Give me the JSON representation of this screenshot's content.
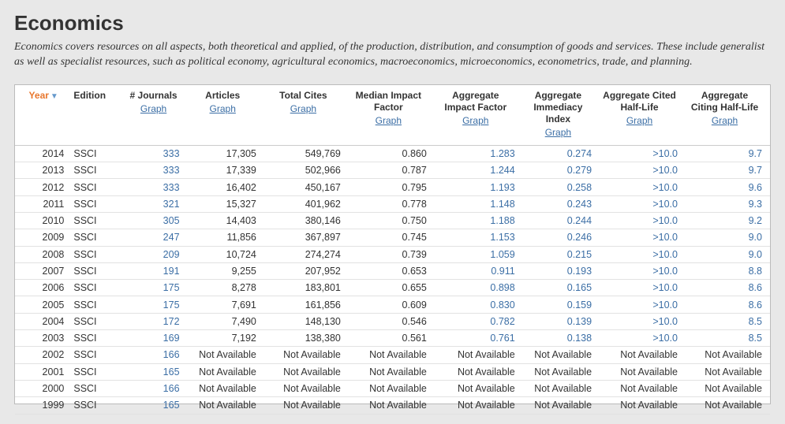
{
  "header": {
    "title": "Economics",
    "description": "Economics covers resources on all aspects, both theoretical and applied, of the production, distribution, and consumption of goods and services. These include generalist as well as specialist resources, such as political economy, agricultural economics, macroeconomics, microeconomics, econometrics, trade, and planning."
  },
  "table": {
    "graph_label": "Graph",
    "na_label": "Not Available",
    "columns": [
      {
        "key": "year",
        "label": "Year",
        "sort": true,
        "graph": false
      },
      {
        "key": "edition",
        "label": "Edition",
        "graph": false
      },
      {
        "key": "njournals",
        "label": "# Journals",
        "graph": true
      },
      {
        "key": "articles",
        "label": "Articles",
        "graph": true
      },
      {
        "key": "cites",
        "label": "Total Cites",
        "graph": true
      },
      {
        "key": "mif",
        "label": "Median Impact Factor",
        "graph": true
      },
      {
        "key": "aif",
        "label": "Aggregate Impact Factor",
        "graph": true
      },
      {
        "key": "aii",
        "label": "Aggregate Immediacy Index",
        "graph": true
      },
      {
        "key": "acited",
        "label": "Aggregate Cited Half-Life",
        "graph": true
      },
      {
        "key": "aciting",
        "label": "Aggregate Citing Half-Life",
        "graph": true
      }
    ],
    "rows": [
      {
        "year": "2014",
        "edition": "SSCI",
        "njournals": "333",
        "articles": "17,305",
        "cites": "549,769",
        "mif": "0.860",
        "aif": "1.283",
        "aii": "0.274",
        "acited": ">10.0",
        "aciting": "9.7"
      },
      {
        "year": "2013",
        "edition": "SSCI",
        "njournals": "333",
        "articles": "17,339",
        "cites": "502,966",
        "mif": "0.787",
        "aif": "1.244",
        "aii": "0.279",
        "acited": ">10.0",
        "aciting": "9.7"
      },
      {
        "year": "2012",
        "edition": "SSCI",
        "njournals": "333",
        "articles": "16,402",
        "cites": "450,167",
        "mif": "0.795",
        "aif": "1.193",
        "aii": "0.258",
        "acited": ">10.0",
        "aciting": "9.6"
      },
      {
        "year": "2011",
        "edition": "SSCI",
        "njournals": "321",
        "articles": "15,327",
        "cites": "401,962",
        "mif": "0.778",
        "aif": "1.148",
        "aii": "0.243",
        "acited": ">10.0",
        "aciting": "9.3"
      },
      {
        "year": "2010",
        "edition": "SSCI",
        "njournals": "305",
        "articles": "14,403",
        "cites": "380,146",
        "mif": "0.750",
        "aif": "1.188",
        "aii": "0.244",
        "acited": ">10.0",
        "aciting": "9.2"
      },
      {
        "year": "2009",
        "edition": "SSCI",
        "njournals": "247",
        "articles": "11,856",
        "cites": "367,897",
        "mif": "0.745",
        "aif": "1.153",
        "aii": "0.246",
        "acited": ">10.0",
        "aciting": "9.0"
      },
      {
        "year": "2008",
        "edition": "SSCI",
        "njournals": "209",
        "articles": "10,724",
        "cites": "274,274",
        "mif": "0.739",
        "aif": "1.059",
        "aii": "0.215",
        "acited": ">10.0",
        "aciting": "9.0"
      },
      {
        "year": "2007",
        "edition": "SSCI",
        "njournals": "191",
        "articles": "9,255",
        "cites": "207,952",
        "mif": "0.653",
        "aif": "0.911",
        "aii": "0.193",
        "acited": ">10.0",
        "aciting": "8.8"
      },
      {
        "year": "2006",
        "edition": "SSCI",
        "njournals": "175",
        "articles": "8,278",
        "cites": "183,801",
        "mif": "0.655",
        "aif": "0.898",
        "aii": "0.165",
        "acited": ">10.0",
        "aciting": "8.6"
      },
      {
        "year": "2005",
        "edition": "SSCI",
        "njournals": "175",
        "articles": "7,691",
        "cites": "161,856",
        "mif": "0.609",
        "aif": "0.830",
        "aii": "0.159",
        "acited": ">10.0",
        "aciting": "8.6"
      },
      {
        "year": "2004",
        "edition": "SSCI",
        "njournals": "172",
        "articles": "7,490",
        "cites": "148,130",
        "mif": "0.546",
        "aif": "0.782",
        "aii": "0.139",
        "acited": ">10.0",
        "aciting": "8.5"
      },
      {
        "year": "2003",
        "edition": "SSCI",
        "njournals": "169",
        "articles": "7,192",
        "cites": "138,380",
        "mif": "0.561",
        "aif": "0.761",
        "aii": "0.138",
        "acited": ">10.0",
        "aciting": "8.5"
      },
      {
        "year": "2002",
        "edition": "SSCI",
        "njournals": "166",
        "articles": "Not Available",
        "cites": "Not Available",
        "mif": "Not Available",
        "aif": "Not Available",
        "aii": "Not Available",
        "acited": "Not Available",
        "aciting": "Not Available"
      },
      {
        "year": "2001",
        "edition": "SSCI",
        "njournals": "165",
        "articles": "Not Available",
        "cites": "Not Available",
        "mif": "Not Available",
        "aif": "Not Available",
        "aii": "Not Available",
        "acited": "Not Available",
        "aciting": "Not Available"
      },
      {
        "year": "2000",
        "edition": "SSCI",
        "njournals": "166",
        "articles": "Not Available",
        "cites": "Not Available",
        "mif": "Not Available",
        "aif": "Not Available",
        "aii": "Not Available",
        "acited": "Not Available",
        "aciting": "Not Available"
      },
      {
        "year": "1999",
        "edition": "SSCI",
        "njournals": "165",
        "articles": "Not Available",
        "cites": "Not Available",
        "mif": "Not Available",
        "aif": "Not Available",
        "aii": "Not Available",
        "acited": "Not Available",
        "aciting": "Not Available"
      }
    ],
    "link_columns": [
      "njournals",
      "aif",
      "aii",
      "acited",
      "aciting"
    ],
    "styling": {
      "sort_color": "#e8772e",
      "link_color": "#3b6ea5",
      "row_border": "#e2e2e2",
      "background": "#ffffff",
      "page_bg": "#e8e8e8",
      "font_size_header": 12,
      "font_size_cell": 12.5
    }
  }
}
